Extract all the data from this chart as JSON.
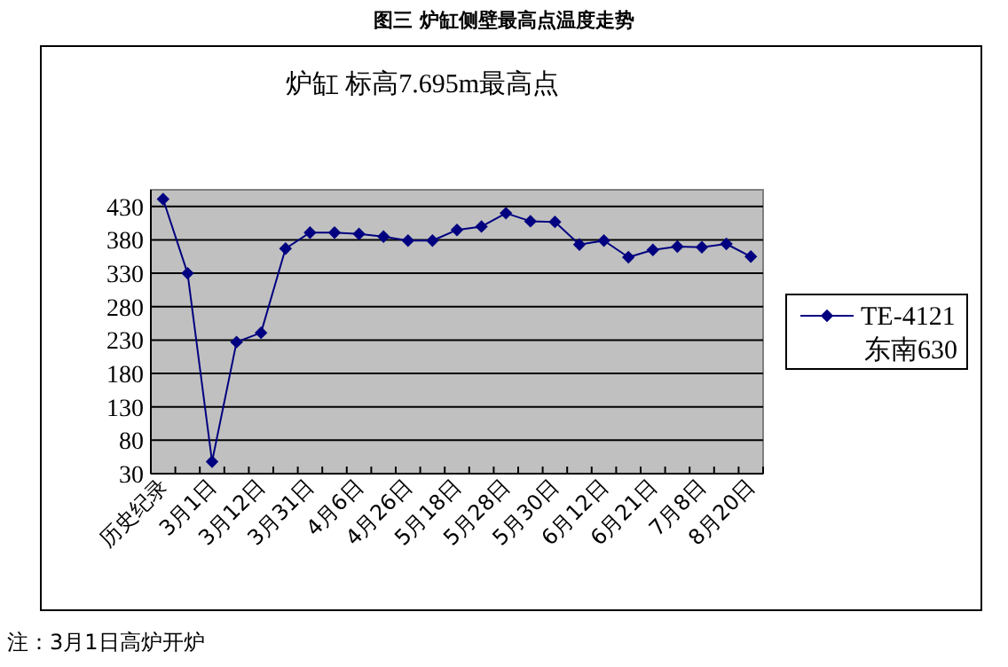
{
  "chart_data": {
    "type": "line",
    "title": "图三 炉缸侧壁最高点温度走势",
    "subtitle": "炉缸 标高7.695m最高点",
    "categories": [
      "历史纪录",
      null,
      "3月1日",
      null,
      "3月12日",
      null,
      "3月31日",
      null,
      "4月6日",
      null,
      "4月26日",
      null,
      "5月18日",
      null,
      "5月28日",
      null,
      "5月30日",
      null,
      "6月12日",
      null,
      "6月21日",
      null,
      "7月8日",
      null,
      "8月20日"
    ],
    "series": [
      {
        "name": "TE-4121 东南630",
        "color": "#000080",
        "values": [
          441,
          330,
          48,
          227,
          241,
          367,
          391,
          391,
          389,
          385,
          379,
          379,
          395,
          400,
          420,
          408,
          407,
          373,
          379,
          354,
          365,
          370,
          369,
          374,
          355
        ]
      }
    ],
    "ylim": [
      30,
      455
    ],
    "yticks": [
      30,
      80,
      130,
      180,
      230,
      280,
      330,
      380,
      430
    ],
    "grid": "y",
    "legend": "right",
    "marker": "diamond",
    "line_style": "solid",
    "annotations": [
      "注：3月1日高炉开炉"
    ]
  }
}
